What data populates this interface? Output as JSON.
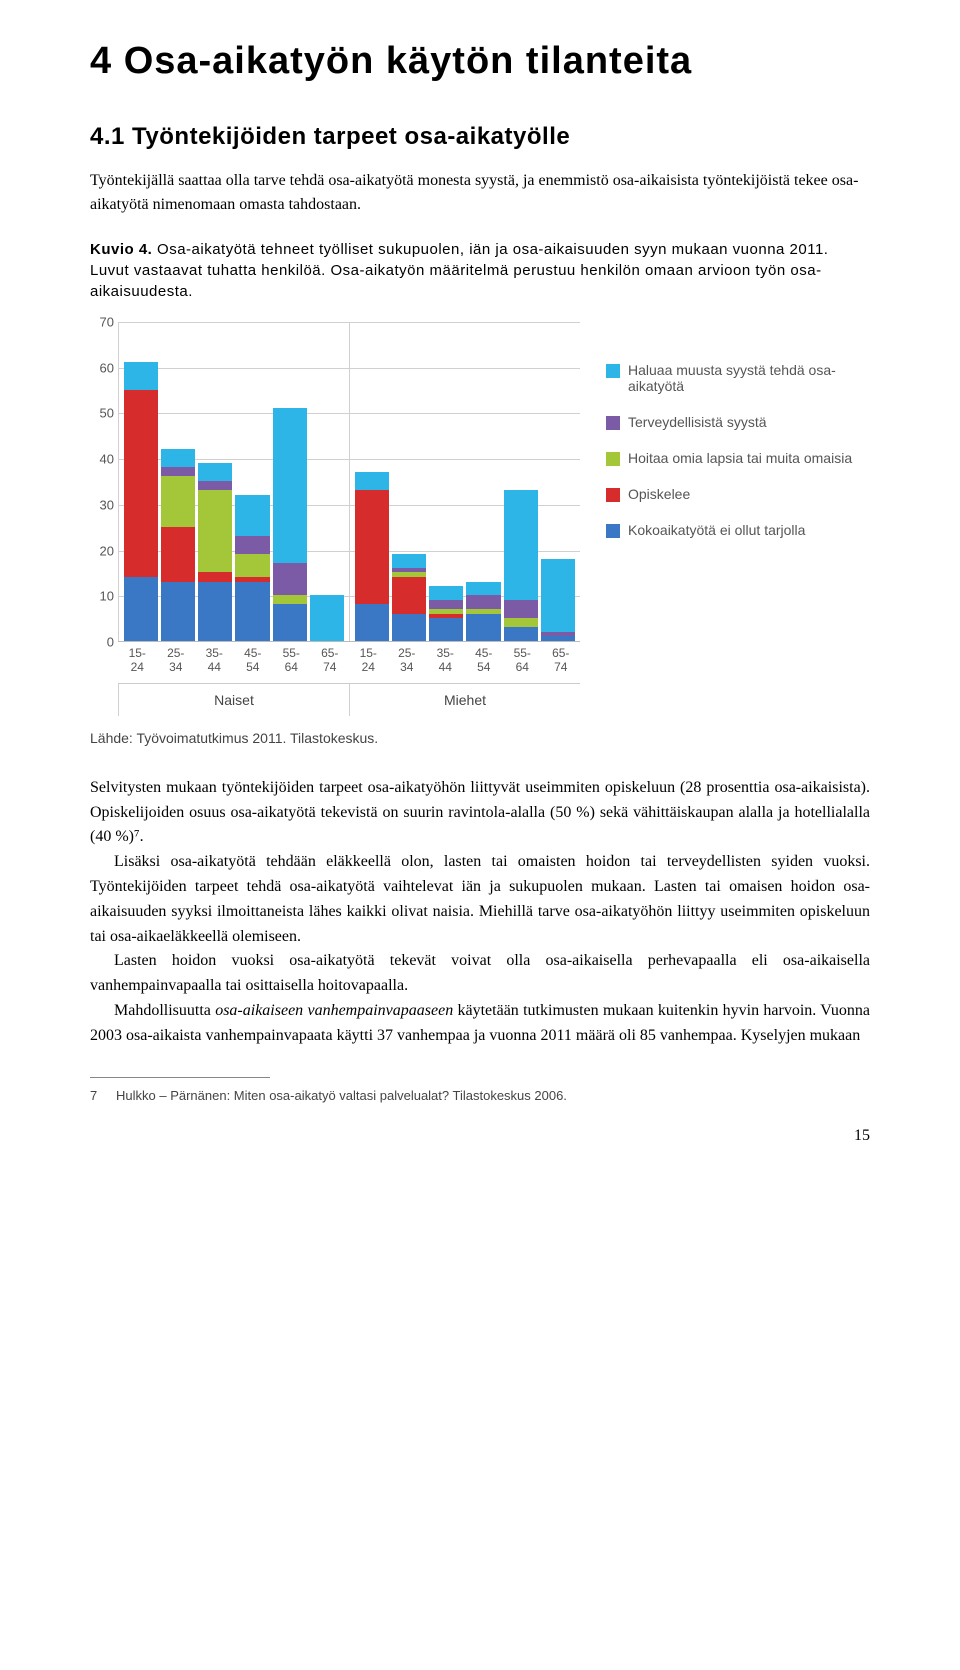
{
  "title": "4 Osa-aikatyön käytön tilanteita",
  "subtitle": "4.1 Työntekijöiden tarpeet osa-aikatyölle",
  "intro": "Työntekijällä saattaa olla tarve tehdä osa-aikatyötä monesta syystä, ja enemmistö osa-aikaisista työntekijöistä tekee osa-aikatyötä nimenomaan omasta tahdostaan.",
  "caption_label": "Kuvio 4.",
  "caption_text": " Osa-aikatyötä tehneet työlliset sukupuolen, iän ja osa-aikaisuuden syyn mukaan vuonna 2011. Luvut vastaavat tuhatta henkilöä. Osa-aikatyön määritelmä perustuu henkilön omaan arvioon työn osa-aikaisuudesta.",
  "chart": {
    "type": "stacked-bar",
    "ymax": 70,
    "ytick_step": 10,
    "yticks": [
      0,
      10,
      20,
      30,
      40,
      50,
      60,
      70
    ],
    "groups": [
      "Naiset",
      "Miehet"
    ],
    "categories": [
      "15-24",
      "25-34",
      "35-44",
      "45-54",
      "55-64",
      "65-74"
    ],
    "series": [
      {
        "key": "haluaa",
        "label": "Haluaa muusta syystä tehdä osa-aikatyötä",
        "color": "#2cb5e6"
      },
      {
        "key": "terveys",
        "label": "Terveydellisistä syystä",
        "color": "#7b5aa6"
      },
      {
        "key": "hoitaa",
        "label": "Hoitaa omia lapsia tai muita omaisia",
        "color": "#a4c639"
      },
      {
        "key": "opisk",
        "label": "Opiskelee",
        "color": "#d62c2c"
      },
      {
        "key": "kokoa",
        "label": "Kokoaikatyötä ei ollut tarjolla",
        "color": "#3a77c4"
      }
    ],
    "data": {
      "Naiset": [
        {
          "kokoa": 14,
          "opisk": 41,
          "hoitaa": 0,
          "terveys": 0,
          "haluaa": 6
        },
        {
          "kokoa": 13,
          "opisk": 12,
          "hoitaa": 11,
          "terveys": 2,
          "haluaa": 4
        },
        {
          "kokoa": 13,
          "opisk": 2,
          "hoitaa": 18,
          "terveys": 2,
          "haluaa": 4
        },
        {
          "kokoa": 13,
          "opisk": 1,
          "hoitaa": 5,
          "terveys": 4,
          "haluaa": 9
        },
        {
          "kokoa": 8,
          "opisk": 0,
          "hoitaa": 2,
          "terveys": 7,
          "haluaa": 34
        },
        {
          "kokoa": 0,
          "opisk": 0,
          "hoitaa": 0,
          "terveys": 0,
          "haluaa": 10
        }
      ],
      "Miehet": [
        {
          "kokoa": 8,
          "opisk": 25,
          "hoitaa": 0,
          "terveys": 0,
          "haluaa": 4
        },
        {
          "kokoa": 6,
          "opisk": 8,
          "hoitaa": 1,
          "terveys": 1,
          "haluaa": 3
        },
        {
          "kokoa": 5,
          "opisk": 1,
          "hoitaa": 1,
          "terveys": 2,
          "haluaa": 3
        },
        {
          "kokoa": 6,
          "opisk": 0,
          "hoitaa": 1,
          "terveys": 3,
          "haluaa": 3
        },
        {
          "kokoa": 3,
          "opisk": 0,
          "hoitaa": 2,
          "terveys": 4,
          "haluaa": 24
        },
        {
          "kokoa": 1,
          "opisk": 0,
          "hoitaa": 0,
          "terveys": 1,
          "haluaa": 16
        }
      ]
    }
  },
  "source": "Lähde: Työvoimatutkimus 2011. Tilastokeskus.",
  "body": [
    "Selvitysten mukaan työntekijöiden tarpeet osa-aikatyöhön liittyvät useimmiten opiskeluun (28 prosenttia osa-aikaisista). Opiskelijoiden osuus osa-aikatyötä tekevistä on suurin ravintola-alalla (50 %) sekä vähittäiskaupan alalla ja hotellialalla (40 %)⁷.",
    "Lisäksi osa-aikatyötä tehdään eläkkeellä olon, lasten tai omaisten hoidon tai terveydellisten syiden vuoksi. Työntekijöiden tarpeet tehdä osa-aikatyötä vaihtelevat iän ja sukupuolen mukaan. Lasten tai omaisen hoidon osa-aikaisuuden syyksi ilmoittaneista lähes kaikki olivat naisia. Miehillä tarve osa-aikatyöhön liittyy useimmiten opiskeluun tai osa-aikaeläkkeellä olemiseen.",
    "Lasten hoidon vuoksi osa-aikatyötä tekevät voivat olla osa-aikaisella perhevapaalla eli osa-aikaisella vanhempainvapaalla tai osittaisella hoitovapaalla.",
    "Mahdollisuutta osa-aikaiseen vanhempainvapaaseen käytetään tutkimusten mukaan kuitenkin hyvin harvoin. Vuonna 2003 osa-aikaista vanhempainvapaata käytti 37 vanhempaa ja vuonna 2011 määrä oli 85 vanhempaa. Kyselyjen mukaan"
  ],
  "footnote": {
    "num": "7",
    "text": "Hulkko – Pärnänen: Miten osa-aikatyö valtasi palvelualat? Tilastokeskus 2006."
  },
  "page": "15"
}
